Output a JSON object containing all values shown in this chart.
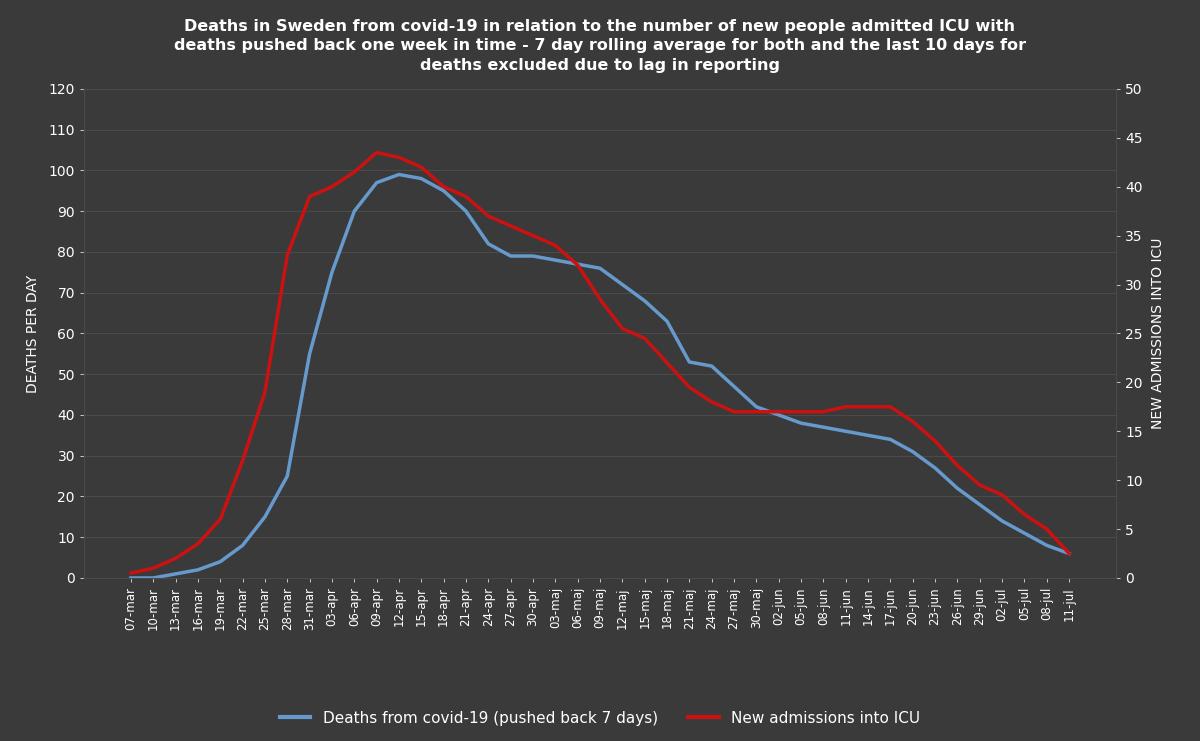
{
  "title": "Deaths in Sweden from covid-19 in relation to the number of new people admitted ICU with\ndeaths pushed back one week in time - 7 day rolling average for both and the last 10 days for\ndeaths excluded due to lag in reporting",
  "background_color": "#3a3a3a",
  "text_color": "#ffffff",
  "grid_color": "#4a4a4a",
  "ylabel_left": "DEATHS PER DAY",
  "ylabel_right": "NEW ADMISSIONS INTO ICU",
  "legend_deaths": "Deaths from covid-19 (pushed back 7 days)",
  "legend_icu": "New admissions into ICU",
  "deaths_color": "#6699cc",
  "icu_color": "#cc1111",
  "xlabels": [
    "07-mar",
    "10-mar",
    "13-mar",
    "16-mar",
    "19-mar",
    "22-mar",
    "25-mar",
    "28-mar",
    "31-mar",
    "03-apr",
    "06-apr",
    "09-apr",
    "12-apr",
    "15-apr",
    "18-apr",
    "21-apr",
    "24-apr",
    "27-apr",
    "30-apr",
    "03-maj",
    "06-maj",
    "09-maj",
    "12-maj",
    "15-maj",
    "18-maj",
    "21-maj",
    "24-maj",
    "27-maj",
    "30-maj",
    "02-jun",
    "05-jun",
    "08-jun",
    "11-jun",
    "14-jun",
    "17-jun",
    "20-jun",
    "23-jun",
    "26-jun",
    "29-jun",
    "02-jul",
    "05-jul",
    "08-jul",
    "11-jul"
  ],
  "deaths_data": [
    0,
    0,
    1,
    2,
    4,
    8,
    15,
    25,
    55,
    75,
    90,
    97,
    99,
    98,
    95,
    90,
    82,
    79,
    79,
    78,
    77,
    76,
    72,
    68,
    63,
    53,
    52,
    47,
    42,
    40,
    38,
    37,
    36,
    35,
    34,
    31,
    27,
    22,
    18,
    14,
    11,
    8,
    6
  ],
  "icu_data": [
    0.5,
    1,
    2,
    3.5,
    6,
    12,
    19,
    33,
    39,
    40,
    41.5,
    43.5,
    43,
    42,
    40,
    39,
    37,
    36,
    35,
    34,
    32,
    28.5,
    25.5,
    24.5,
    22,
    19.5,
    18,
    17,
    17,
    17,
    17,
    17,
    17.5,
    17.5,
    17.5,
    16,
    14,
    11.5,
    9.5,
    8.5,
    6.5,
    5,
    2.5
  ],
  "ylim_left": [
    0,
    120
  ],
  "ylim_right": [
    0,
    50
  ],
  "yticks_left": [
    0,
    10,
    20,
    30,
    40,
    50,
    60,
    70,
    80,
    90,
    100,
    110,
    120
  ],
  "yticks_right": [
    0,
    5,
    10,
    15,
    20,
    25,
    30,
    35,
    40,
    45,
    50
  ]
}
